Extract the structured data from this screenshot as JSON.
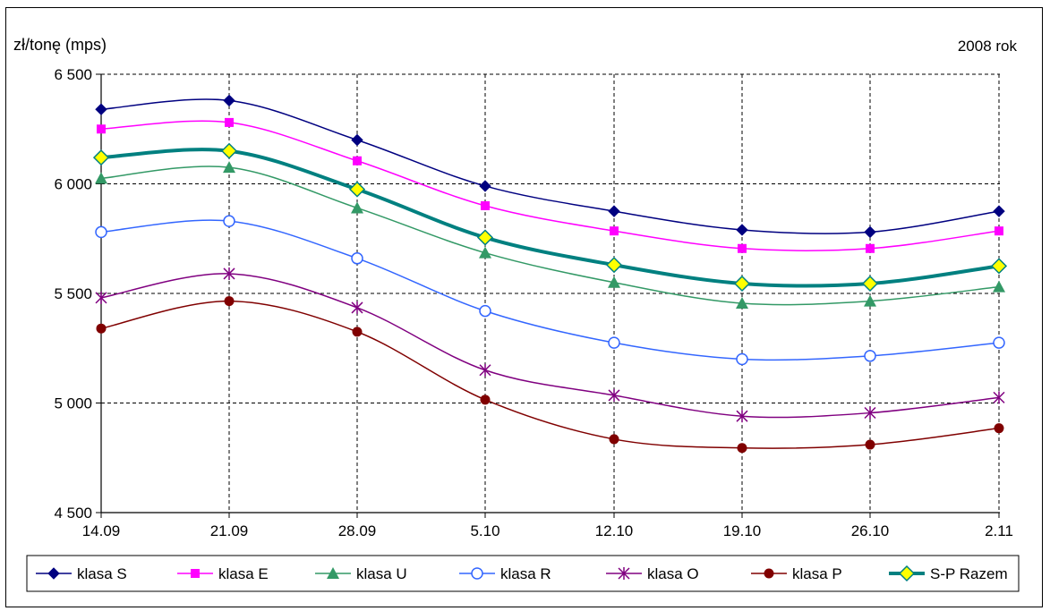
{
  "chart_data": {
    "type": "line",
    "title": "",
    "ylabel": "zł/tonę (mps)",
    "xlabel": "",
    "annotation": "2008 rok",
    "categories": [
      "14.09",
      "21.09",
      "28.09",
      "5.10",
      "12.10",
      "19.10",
      "26.10",
      "2.11"
    ],
    "ylim": [
      4500,
      6500
    ],
    "yticks": [
      4500,
      5000,
      5500,
      6000,
      6500
    ],
    "ytick_labels": [
      "4 500",
      "5 000",
      "5 500",
      "6 000",
      "6 500"
    ],
    "grid": true,
    "legend_position": "bottom",
    "series": [
      {
        "name": "klasa S",
        "color": "#000080",
        "marker": "diamond",
        "values": [
          6340,
          6380,
          6200,
          5990,
          5875,
          5790,
          5780,
          5875
        ]
      },
      {
        "name": "klasa E",
        "color": "#ff00ff",
        "marker": "square",
        "values": [
          6250,
          6280,
          6105,
          5900,
          5785,
          5705,
          5705,
          5785
        ]
      },
      {
        "name": "klasa U",
        "color": "#339966",
        "marker": "triangle",
        "values": [
          6025,
          6075,
          5890,
          5685,
          5550,
          5455,
          5465,
          5530
        ]
      },
      {
        "name": "klasa R",
        "color": "#3366ff",
        "marker": "circle-open",
        "values": [
          5780,
          5830,
          5660,
          5420,
          5275,
          5200,
          5215,
          5275
        ]
      },
      {
        "name": "klasa O",
        "color": "#800080",
        "marker": "star",
        "values": [
          5480,
          5590,
          5435,
          5150,
          5035,
          4940,
          4955,
          5025
        ]
      },
      {
        "name": "klasa P",
        "color": "#800000",
        "marker": "circle",
        "values": [
          5340,
          5465,
          5325,
          5015,
          4835,
          4795,
          4810,
          4885
        ]
      },
      {
        "name": "S-P Razem",
        "color": "#008080",
        "marker": "diamond-yellow",
        "values": [
          6120,
          6150,
          5975,
          5755,
          5630,
          5545,
          5545,
          5625
        ]
      }
    ]
  }
}
